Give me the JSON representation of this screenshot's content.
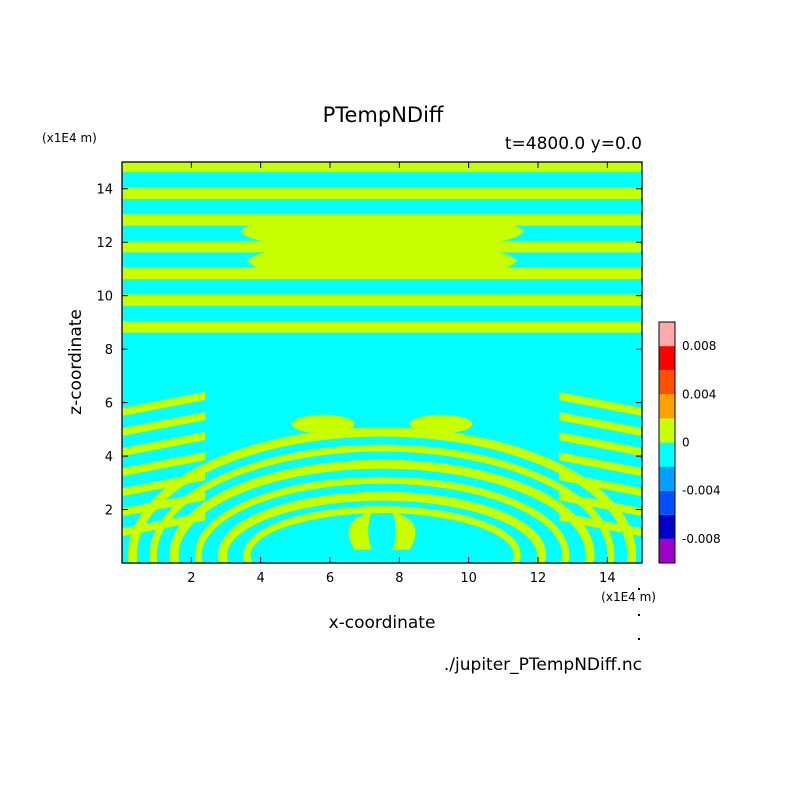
{
  "chart_data": {
    "type": "heatmap",
    "title": "PTempNDiff",
    "subtitle": "t=4800.0 y=0.0",
    "xlabel": "x-coordinate",
    "ylabel": "z-coordinate",
    "x_unit": "(x1E4 m)",
    "y_unit": "(x1E4 m)",
    "source": "./jupiter_PTempNDiff.nc",
    "xlim": [
      0,
      15
    ],
    "ylim": [
      0,
      15
    ],
    "x_ticks": [
      2,
      4,
      6,
      8,
      10,
      12,
      14
    ],
    "y_ticks": [
      2,
      4,
      6,
      8,
      10,
      12,
      14
    ],
    "x_tick_labels": [
      "2",
      "4",
      "6",
      "8",
      "10",
      "12",
      "14"
    ],
    "y_tick_labels": [
      "2",
      "4",
      "6",
      "8",
      "10",
      "12",
      "14"
    ],
    "field_colors": {
      "negative": "#00ffff",
      "positive": "#c8ff00"
    },
    "colorbar": {
      "levels": [
        -0.01,
        -0.008,
        -0.006,
        -0.004,
        -0.002,
        0,
        0.002,
        0.004,
        0.006,
        0.008,
        0.01
      ],
      "colors": [
        "#a000c8",
        "#0000c8",
        "#0050ff",
        "#00a0ff",
        "#00ffff",
        "#c8ff00",
        "#ffa000",
        "#ff5000",
        "#ff0000",
        "#ffaaaa"
      ],
      "tick_values": [
        0.008,
        0.004,
        0,
        -0.004,
        -0.008
      ],
      "tick_labels": [
        "0.008",
        "0.004",
        "0",
        "-0.004",
        "-0.008"
      ]
    },
    "regions": {
      "stripe_period_z": 1.0,
      "upper_stripes_z": [
        8.5,
        15
      ],
      "upper_stripes_x_extent": "full width",
      "central_calm_zone_x": [
        2.6,
        12.6
      ],
      "central_calm_zone_z": [
        5.2,
        8.5
      ],
      "lower_arcs_center": [
        7.5,
        0.3
      ],
      "lower_arcs_z": [
        0,
        5.4
      ],
      "plume_center_x": 7.5
    }
  }
}
